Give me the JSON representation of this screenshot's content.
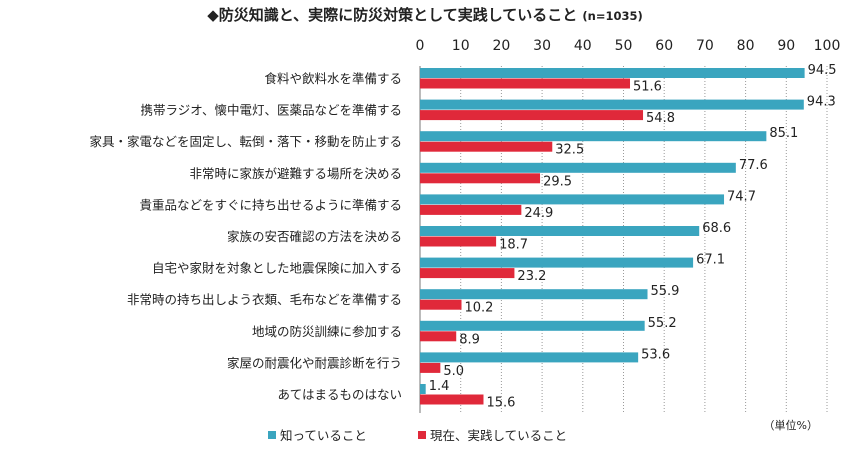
{
  "chart_data": {
    "type": "bar",
    "orientation": "horizontal",
    "title": "◆防災知識と、実際に防災対策として実践していること",
    "subtitle": "(n=1035)",
    "unit_note": "（単位%）",
    "xlim": [
      0,
      100
    ],
    "x_ticks": [
      0,
      10,
      20,
      30,
      40,
      50,
      60,
      70,
      80,
      90,
      100
    ],
    "grid": true,
    "legend_position": "bottom",
    "categories": [
      "食料や飲料水を準備する",
      "携帯ラジオ、懐中電灯、医薬品などを準備する",
      "家具・家電などを固定し、転倒・落下・移動を防止する",
      "非常時に家族が避難する場所を決める",
      "貴重品などをすぐに持ち出せるように準備する",
      "家族の安否確認の方法を決める",
      "自宅や家財を対象とした地震保険に加入する",
      "非常時の持ち出しよう衣類、毛布などを準備する",
      "地域の防災訓練に参加する",
      "家屋の耐震化や耐震診断を行う",
      "あてはまるものはない"
    ],
    "series": [
      {
        "name": "知っていること",
        "color": "#3aa5bf",
        "values": [
          94.5,
          94.3,
          85.1,
          77.6,
          74.7,
          68.6,
          67.1,
          55.9,
          55.2,
          53.6,
          1.4
        ]
      },
      {
        "name": "現在、実践していること",
        "color": "#e0293a",
        "values": [
          51.6,
          54.8,
          32.5,
          29.5,
          24.9,
          18.7,
          23.2,
          10.2,
          8.9,
          5.0,
          15.6
        ]
      }
    ]
  }
}
